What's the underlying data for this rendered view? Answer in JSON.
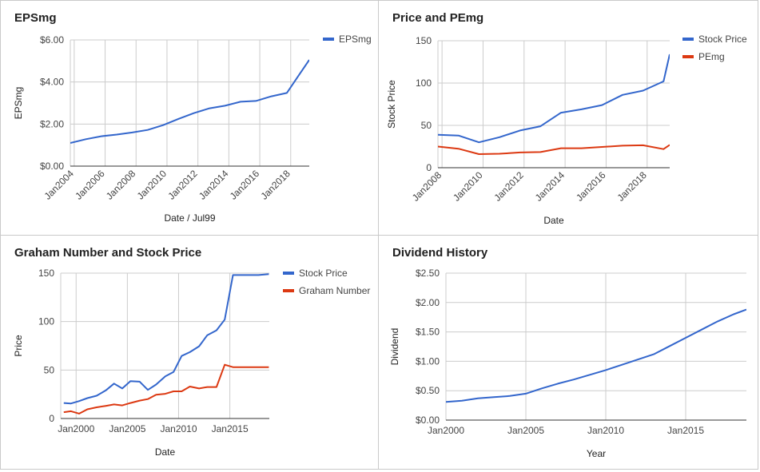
{
  "colors": {
    "blue": "#3366cc",
    "red": "#dc3912",
    "grid": "#cccccc",
    "axis": "#333333",
    "text": "#444444"
  },
  "chart_data": [
    {
      "id": "epsmg",
      "type": "line",
      "title": "EPSmg",
      "xlabel": "Date / Jul99",
      "ylabel": "EPSmg",
      "ylim": [
        0,
        6
      ],
      "yticks": [
        {
          "v": 0,
          "label": "$0.00"
        },
        {
          "v": 2,
          "label": "$2.00"
        },
        {
          "v": 4,
          "label": "$4.00"
        },
        {
          "v": 6,
          "label": "$6.00"
        }
      ],
      "xlim": [
        2003.75,
        2019.2
      ],
      "xticks": [
        {
          "v": 2004,
          "label": "Jan2004"
        },
        {
          "v": 2006,
          "label": "Jan2006"
        },
        {
          "v": 2008,
          "label": "Jan2008"
        },
        {
          "v": 2010,
          "label": "Jan2010"
        },
        {
          "v": 2012,
          "label": "Jan2012"
        },
        {
          "v": 2014,
          "label": "Jan2014"
        },
        {
          "v": 2016,
          "label": "Jan2016"
        },
        {
          "v": 2018,
          "label": "Jan2018"
        }
      ],
      "xtick_rotate": true,
      "legend": "right",
      "grid": true,
      "series": [
        {
          "name": "EPSmg",
          "color": "#3366cc",
          "x": [
            2003.75,
            2004.75,
            2005.75,
            2006.75,
            2007.75,
            2008.75,
            2009.75,
            2010.75,
            2011.75,
            2012.75,
            2013.75,
            2014.75,
            2015.75,
            2016.75,
            2017.75,
            2018.5,
            2019.2
          ],
          "y": [
            1.1,
            1.28,
            1.42,
            1.5,
            1.6,
            1.72,
            1.95,
            2.25,
            2.52,
            2.75,
            2.87,
            3.06,
            3.1,
            3.32,
            3.48,
            4.3,
            5.05
          ]
        }
      ]
    },
    {
      "id": "price-pemg",
      "type": "line",
      "title": "Price and PEmg",
      "xlabel": "Date",
      "ylabel": "Stock Price",
      "ylim": [
        0,
        150
      ],
      "yticks": [
        {
          "v": 0,
          "label": "0"
        },
        {
          "v": 50,
          "label": "50"
        },
        {
          "v": 100,
          "label": "100"
        },
        {
          "v": 150,
          "label": "150"
        }
      ],
      "xlim": [
        2007.8,
        2019.1
      ],
      "xticks": [
        {
          "v": 2008,
          "label": "Jan2008"
        },
        {
          "v": 2010,
          "label": "Jan2010"
        },
        {
          "v": 2012,
          "label": "Jan2012"
        },
        {
          "v": 2014,
          "label": "Jan2014"
        },
        {
          "v": 2016,
          "label": "Jan2016"
        },
        {
          "v": 2018,
          "label": "Jan2018"
        }
      ],
      "xtick_rotate": true,
      "legend": "right",
      "grid": true,
      "series": [
        {
          "name": "Stock Price",
          "color": "#3366cc",
          "x": [
            2007.8,
            2008.8,
            2009.8,
            2010.8,
            2011.8,
            2012.8,
            2013.8,
            2014.8,
            2015.8,
            2016.8,
            2017.8,
            2018.8,
            2019.1
          ],
          "y": [
            39,
            38,
            30,
            36,
            44,
            49,
            65,
            69,
            74,
            86,
            91,
            102,
            134
          ]
        },
        {
          "name": "PEmg",
          "color": "#dc3912",
          "x": [
            2007.8,
            2008.8,
            2009.8,
            2010.8,
            2011.8,
            2012.8,
            2013.8,
            2014.8,
            2015.8,
            2016.8,
            2017.8,
            2018.8,
            2019.1
          ],
          "y": [
            25,
            22.5,
            16,
            16.5,
            18,
            18.5,
            23,
            23,
            24.5,
            26,
            26.5,
            22,
            27
          ]
        }
      ]
    },
    {
      "id": "graham",
      "type": "line",
      "title": "Graham Number and Stock Price",
      "xlabel": "Date",
      "ylabel": "Price",
      "ylim": [
        0,
        150
      ],
      "yticks": [
        {
          "v": 0,
          "label": "0"
        },
        {
          "v": 50,
          "label": "50"
        },
        {
          "v": 100,
          "label": "100"
        },
        {
          "v": 150,
          "label": "150"
        }
      ],
      "xlim": [
        1998.5,
        2018.85
      ],
      "xticks": [
        {
          "v": 2000,
          "label": "Jan2000"
        },
        {
          "v": 2005,
          "label": "Jan2005"
        },
        {
          "v": 2010,
          "label": "Jan2010"
        },
        {
          "v": 2015,
          "label": "Jan2015"
        }
      ],
      "xtick_rotate": false,
      "legend": "right",
      "grid": true,
      "series": [
        {
          "name": "Stock Price",
          "color": "#3366cc",
          "x": [
            1998.8,
            1999.5,
            2000.3,
            2001.1,
            2002.0,
            2002.9,
            2003.7,
            2004.5,
            2005.3,
            2006.2,
            2007.0,
            2007.8,
            2008.7,
            2009.5,
            2010.3,
            2011.1,
            2012.0,
            2012.8,
            2013.7,
            2014.5,
            2015.3,
            2016.2,
            2017.0,
            2017.8,
            2018.8
          ],
          "y": [
            16,
            15.5,
            18,
            21,
            23.5,
            29,
            36,
            31,
            38.5,
            38,
            29.5,
            35,
            43.5,
            48,
            64.5,
            68.5,
            74.5,
            86,
            91,
            102,
            148,
            148,
            148,
            148,
            149
          ]
        },
        {
          "name": "Graham Number",
          "color": "#dc3912",
          "x": [
            1998.8,
            1999.5,
            2000.3,
            2001.1,
            2002.0,
            2002.9,
            2003.7,
            2004.5,
            2005.3,
            2006.2,
            2007.0,
            2007.8,
            2008.7,
            2009.5,
            2010.3,
            2011.1,
            2012.0,
            2012.8,
            2013.7,
            2014.5,
            2015.3,
            2016.2,
            2017.0,
            2017.8,
            2018.8
          ],
          "y": [
            6.5,
            7.5,
            5,
            9.5,
            11.5,
            13,
            14.5,
            13.5,
            16,
            18.5,
            20,
            24.5,
            25.5,
            28,
            28,
            33,
            31,
            32.5,
            32.5,
            55.5,
            53,
            53,
            53,
            53,
            53
          ]
        }
      ]
    },
    {
      "id": "dividend",
      "type": "line",
      "title": "Dividend History",
      "xlabel": "Year",
      "ylabel": "Dividend",
      "ylim": [
        0,
        2.5
      ],
      "yticks": [
        {
          "v": 0,
          "label": "$0.00"
        },
        {
          "v": 0.5,
          "label": "$0.50"
        },
        {
          "v": 1,
          "label": "$1.00"
        },
        {
          "v": 1.5,
          "label": "$1.50"
        },
        {
          "v": 2,
          "label": "$2.00"
        },
        {
          "v": 2.5,
          "label": "$2.50"
        }
      ],
      "xlim": [
        2000,
        2018.8
      ],
      "xticks": [
        {
          "v": 2000,
          "label": "Jan2000"
        },
        {
          "v": 2005,
          "label": "Jan2005"
        },
        {
          "v": 2010,
          "label": "Jan2010"
        },
        {
          "v": 2015,
          "label": "Jan2015"
        }
      ],
      "xtick_rotate": false,
      "legend": "none",
      "grid": true,
      "series": [
        {
          "name": "",
          "color": "#3366cc",
          "x": [
            2000,
            2001,
            2002,
            2003,
            2004,
            2005,
            2006,
            2007,
            2008,
            2009,
            2010,
            2011,
            2012,
            2013,
            2014,
            2015,
            2016,
            2017,
            2018,
            2018.8
          ],
          "y": [
            0.31,
            0.33,
            0.37,
            0.39,
            0.41,
            0.45,
            0.54,
            0.62,
            0.69,
            0.77,
            0.85,
            0.94,
            1.03,
            1.12,
            1.26,
            1.4,
            1.54,
            1.68,
            1.8,
            1.88
          ]
        }
      ]
    }
  ]
}
